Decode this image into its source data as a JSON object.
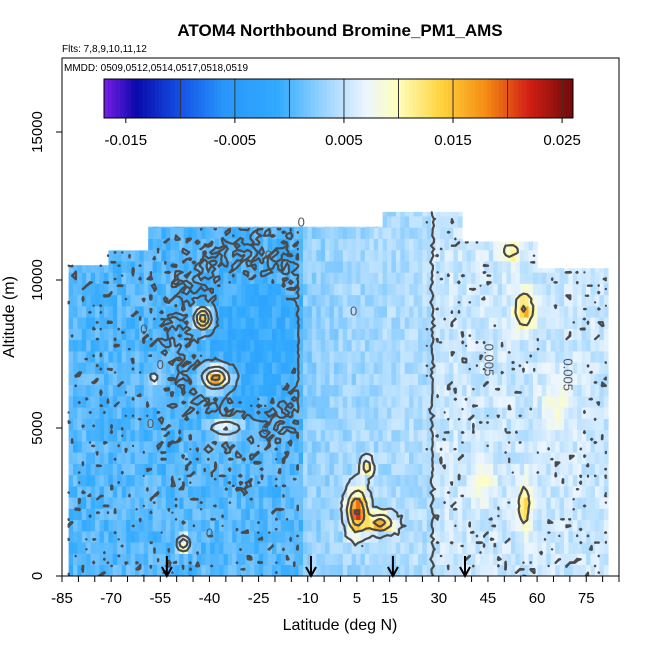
{
  "chart_data": {
    "type": "heatmap",
    "title": "ATOM4 Northbound Bromine_PM1_AMS",
    "flights_note": "Flts: 7,8,9,10,11,12",
    "dates_note": "MMDD: 0509,0512,0514,0517,0518,0519",
    "xlabel": "Latitude (deg N)",
    "ylabel": "Altitude (m)",
    "xlim": [
      -85,
      85
    ],
    "ylim": [
      0,
      17500
    ],
    "x_ticks": [
      -85,
      -70,
      -55,
      -40,
      -25,
      -10,
      5,
      15,
      30,
      45,
      60,
      75
    ],
    "x_tick_labels": [
      "-85",
      "-70",
      "-55",
      "-40",
      "-25",
      "-10",
      "5",
      "15",
      "30",
      "45",
      "60",
      "75"
    ],
    "y_ticks": [
      0,
      5000,
      10000,
      15000
    ],
    "y_tick_labels": [
      "0",
      "5000",
      "10000",
      "15000"
    ],
    "colorbar": {
      "min": -0.017,
      "max": 0.026,
      "tick_values": [
        -0.015,
        -0.005,
        0.005,
        0.015,
        0.025
      ],
      "tick_labels": [
        "-0.015",
        "-0.005",
        "0.005",
        "0.015",
        "0.025"
      ],
      "line_values": [
        -0.01,
        -0.005,
        0,
        0.005,
        0.01,
        0.015,
        0.02,
        0.025
      ]
    },
    "contour_labels": [
      {
        "text": "0",
        "lat": -60,
        "alt": 8200
      },
      {
        "text": "0",
        "lat": -55,
        "alt": 7000
      },
      {
        "text": "0",
        "lat": -58,
        "alt": 5000
      },
      {
        "text": "0",
        "lat": -22,
        "alt": 10700
      },
      {
        "text": "0",
        "lat": -12,
        "alt": 11800
      },
      {
        "text": "0",
        "lat": -23,
        "alt": 4800
      },
      {
        "text": "0",
        "lat": 4,
        "alt": 8800
      },
      {
        "text": "0",
        "lat": -40,
        "alt": 1300
      },
      {
        "text": "0.005",
        "lat": 44,
        "alt": 7300
      },
      {
        "text": "0.005",
        "lat": 68,
        "alt": 6800
      }
    ],
    "sample_markers_lat": [
      -53,
      -9,
      16,
      38
    ],
    "data_coverage": {
      "lat_range": [
        -83,
        81
      ],
      "alt_range": [
        0,
        12500
      ]
    }
  }
}
